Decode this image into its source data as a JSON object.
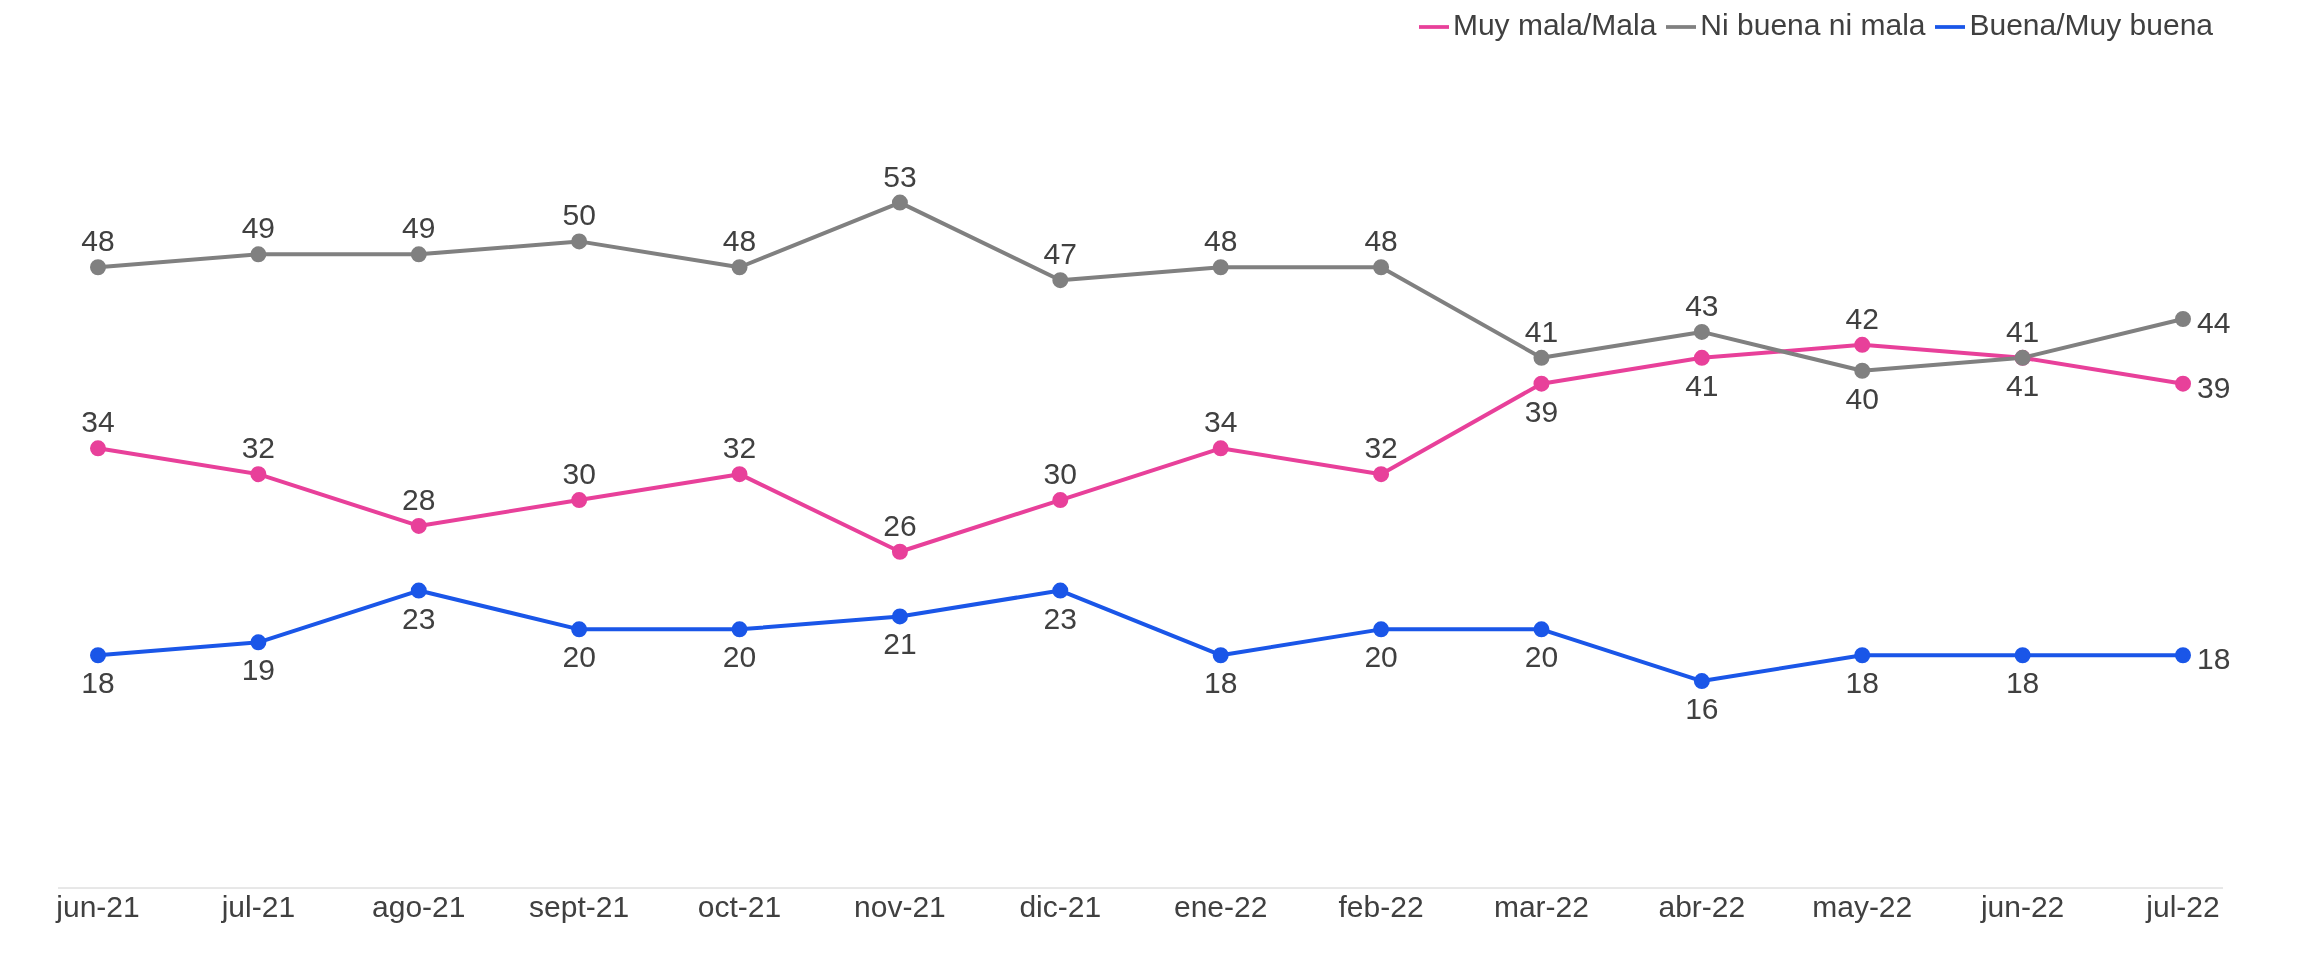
{
  "chart_data": {
    "type": "line",
    "categories": [
      "jun-21",
      "jul-21",
      "ago-21",
      "sept-21",
      "oct-21",
      "nov-21",
      "dic-21",
      "ene-22",
      "feb-22",
      "mar-22",
      "abr-22",
      "may-22",
      "jun-22",
      "jul-22"
    ],
    "series": [
      {
        "name": "Muy mala/Mala",
        "color": "#e8409a",
        "values": [
          34,
          32,
          28,
          30,
          32,
          26,
          30,
          34,
          32,
          39,
          41,
          42,
          41,
          39
        ]
      },
      {
        "name": "Ni buena ni mala",
        "color": "#808080",
        "values": [
          48,
          49,
          49,
          50,
          48,
          53,
          47,
          48,
          48,
          41,
          43,
          40,
          41,
          44
        ]
      },
      {
        "name": "Buena/Muy buena",
        "color": "#1a56e8",
        "values": [
          18,
          19,
          23,
          20,
          20,
          21,
          23,
          18,
          20,
          20,
          16,
          18,
          18,
          18
        ]
      }
    ],
    "tick_labels": "x",
    "data_labels": true,
    "legend": "top right",
    "marker": "circle"
  }
}
